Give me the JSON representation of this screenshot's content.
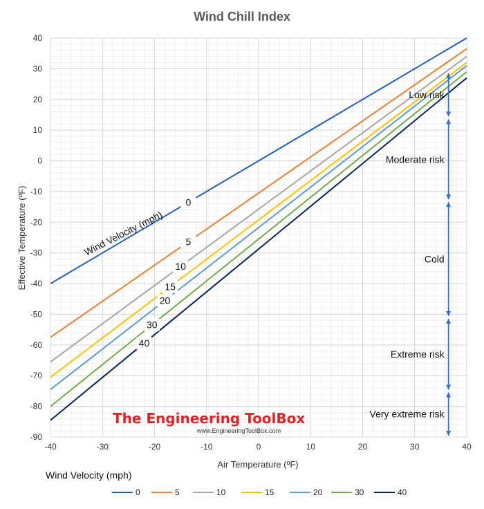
{
  "chart_data": {
    "type": "line",
    "title": "Wind Chill Index",
    "xlabel": "Air Temperature (ºF)",
    "ylabel": "Effective Temperature (ºF)",
    "xlim": [
      -40,
      40
    ],
    "ylim": [
      -90,
      40
    ],
    "xticks": [
      -40,
      -30,
      -20,
      -10,
      0,
      10,
      20,
      30,
      40
    ],
    "yticks": [
      40,
      30,
      20,
      10,
      0,
      -10,
      -20,
      -30,
      -40,
      -50,
      -60,
      -70,
      -80,
      -90
    ],
    "grid": true,
    "legend_title": "Wind Velocity (mph)",
    "legend_position": "bottom",
    "line_label_title": "Wind Velocity (mph)",
    "series": [
      {
        "name": "0",
        "color": "#1f5fbf",
        "x": [
          -40,
          40
        ],
        "y": [
          -40,
          40
        ],
        "label_x": -13.5
      },
      {
        "name": "5",
        "color": "#ed7d31",
        "x": [
          -40,
          40
        ],
        "y": [
          -57.5,
          36.5
        ],
        "label_x": -13.5
      },
      {
        "name": "10",
        "color": "#a5a5a5",
        "x": [
          -40,
          40
        ],
        "y": [
          -65.5,
          34
        ],
        "label_x": -15
      },
      {
        "name": "15",
        "color": "#ffc000",
        "x": [
          -40,
          40
        ],
        "y": [
          -70.5,
          32
        ],
        "label_x": -17
      },
      {
        "name": "20",
        "color": "#5b9bd5",
        "x": [
          -40,
          40
        ],
        "y": [
          -74.5,
          31
        ],
        "label_x": -18
      },
      {
        "name": "30",
        "color": "#70ad47",
        "x": [
          -40,
          40
        ],
        "y": [
          -80,
          29
        ],
        "label_x": -20.5
      },
      {
        "name": "40",
        "color": "#002060",
        "x": [
          -40,
          40
        ],
        "y": [
          -84.5,
          27
        ],
        "label_x": -22
      }
    ],
    "risk_bar": {
      "x": 36.5,
      "color": "#2e6fcf",
      "segments": [
        {
          "label": "Low risk",
          "from": 14,
          "to": 29
        },
        {
          "label": "Moderate risk",
          "from": -13,
          "to": 14
        },
        {
          "label": "Cold",
          "from": -51,
          "to": -13
        },
        {
          "label": "Extreme  risk",
          "from": -75,
          "to": -51
        },
        {
          "label": "Very extreme risk",
          "from": -90,
          "to": -75
        }
      ]
    }
  },
  "watermark": {
    "brand": "The Engineering ToolBox",
    "url": "www.EngineeringToolBox.com"
  }
}
